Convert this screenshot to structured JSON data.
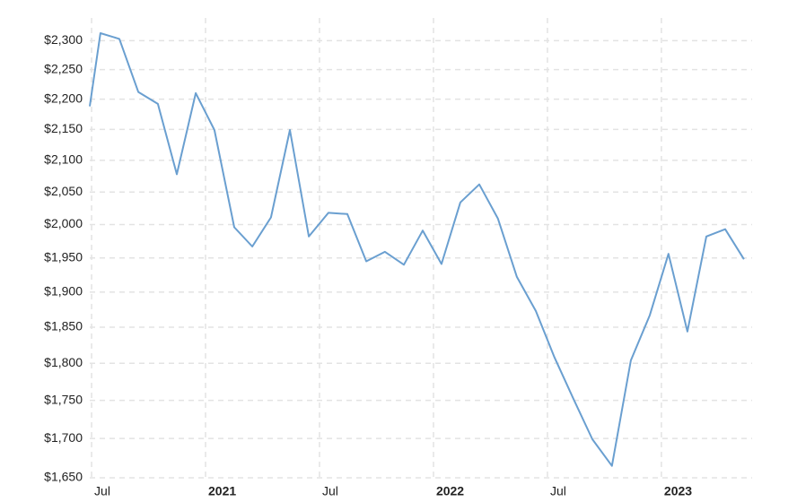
{
  "chart_data": {
    "type": "line",
    "log_y": true,
    "grid": true,
    "x": [
      2020.492,
      2020.539,
      2020.622,
      2020.705,
      2020.791,
      2020.874,
      2020.957,
      2021.039,
      2021.126,
      2021.205,
      2021.287,
      2021.37,
      2021.453,
      2021.539,
      2021.622,
      2021.705,
      2021.787,
      2021.87,
      2021.953,
      2022.035,
      2022.118,
      2022.201,
      2022.283,
      2022.366,
      2022.449,
      2022.531,
      2022.614,
      2022.697,
      2022.783,
      2022.866,
      2022.949,
      2023.031,
      2023.114,
      2023.197,
      2023.28,
      2023.362
    ],
    "series": [
      {
        "color": "#6a9fd0",
        "values": [
          2188,
          2313,
          2303,
          2212,
          2192,
          2078,
          2210,
          2149,
          1996,
          1967,
          2011,
          2149,
          1982,
          2018,
          2016,
          1945,
          1959,
          1940,
          1991,
          1941,
          2034,
          2062,
          2009,
          1922,
          1873,
          1808,
          1752,
          1699,
          1665,
          1804,
          1867,
          1956,
          1844,
          1982,
          1993,
          1948
        ]
      }
    ],
    "xlim": [
      2020.492,
      2023.398
    ],
    "xticks": [
      {
        "value": 2020.5,
        "label": "Jul"
      },
      {
        "value": 2021,
        "label": "2021"
      },
      {
        "value": 2021.5,
        "label": "Jul"
      },
      {
        "value": 2022,
        "label": "2022"
      },
      {
        "value": 2022.5,
        "label": "Jul"
      },
      {
        "value": 2023,
        "label": "2023"
      }
    ],
    "ylim": [
      1650,
      2340
    ],
    "yticks": [
      {
        "value": 1650,
        "label": "$1,650"
      },
      {
        "value": 1700,
        "label": "$1,700"
      },
      {
        "value": 1750,
        "label": "$1,750"
      },
      {
        "value": 1800,
        "label": "$1,800"
      },
      {
        "value": 1850,
        "label": "$1,850"
      },
      {
        "value": 1900,
        "label": "$1,900"
      },
      {
        "value": 1950,
        "label": "$1,950"
      },
      {
        "value": 2000,
        "label": "$2,000"
      },
      {
        "value": 2050,
        "label": "$2,050"
      },
      {
        "value": 2100,
        "label": "$2,100"
      },
      {
        "value": 2150,
        "label": "$2,150"
      },
      {
        "value": 2200,
        "label": "$2,200"
      },
      {
        "value": 2250,
        "label": "$2,250"
      },
      {
        "value": 2300,
        "label": "$2,300"
      }
    ]
  }
}
